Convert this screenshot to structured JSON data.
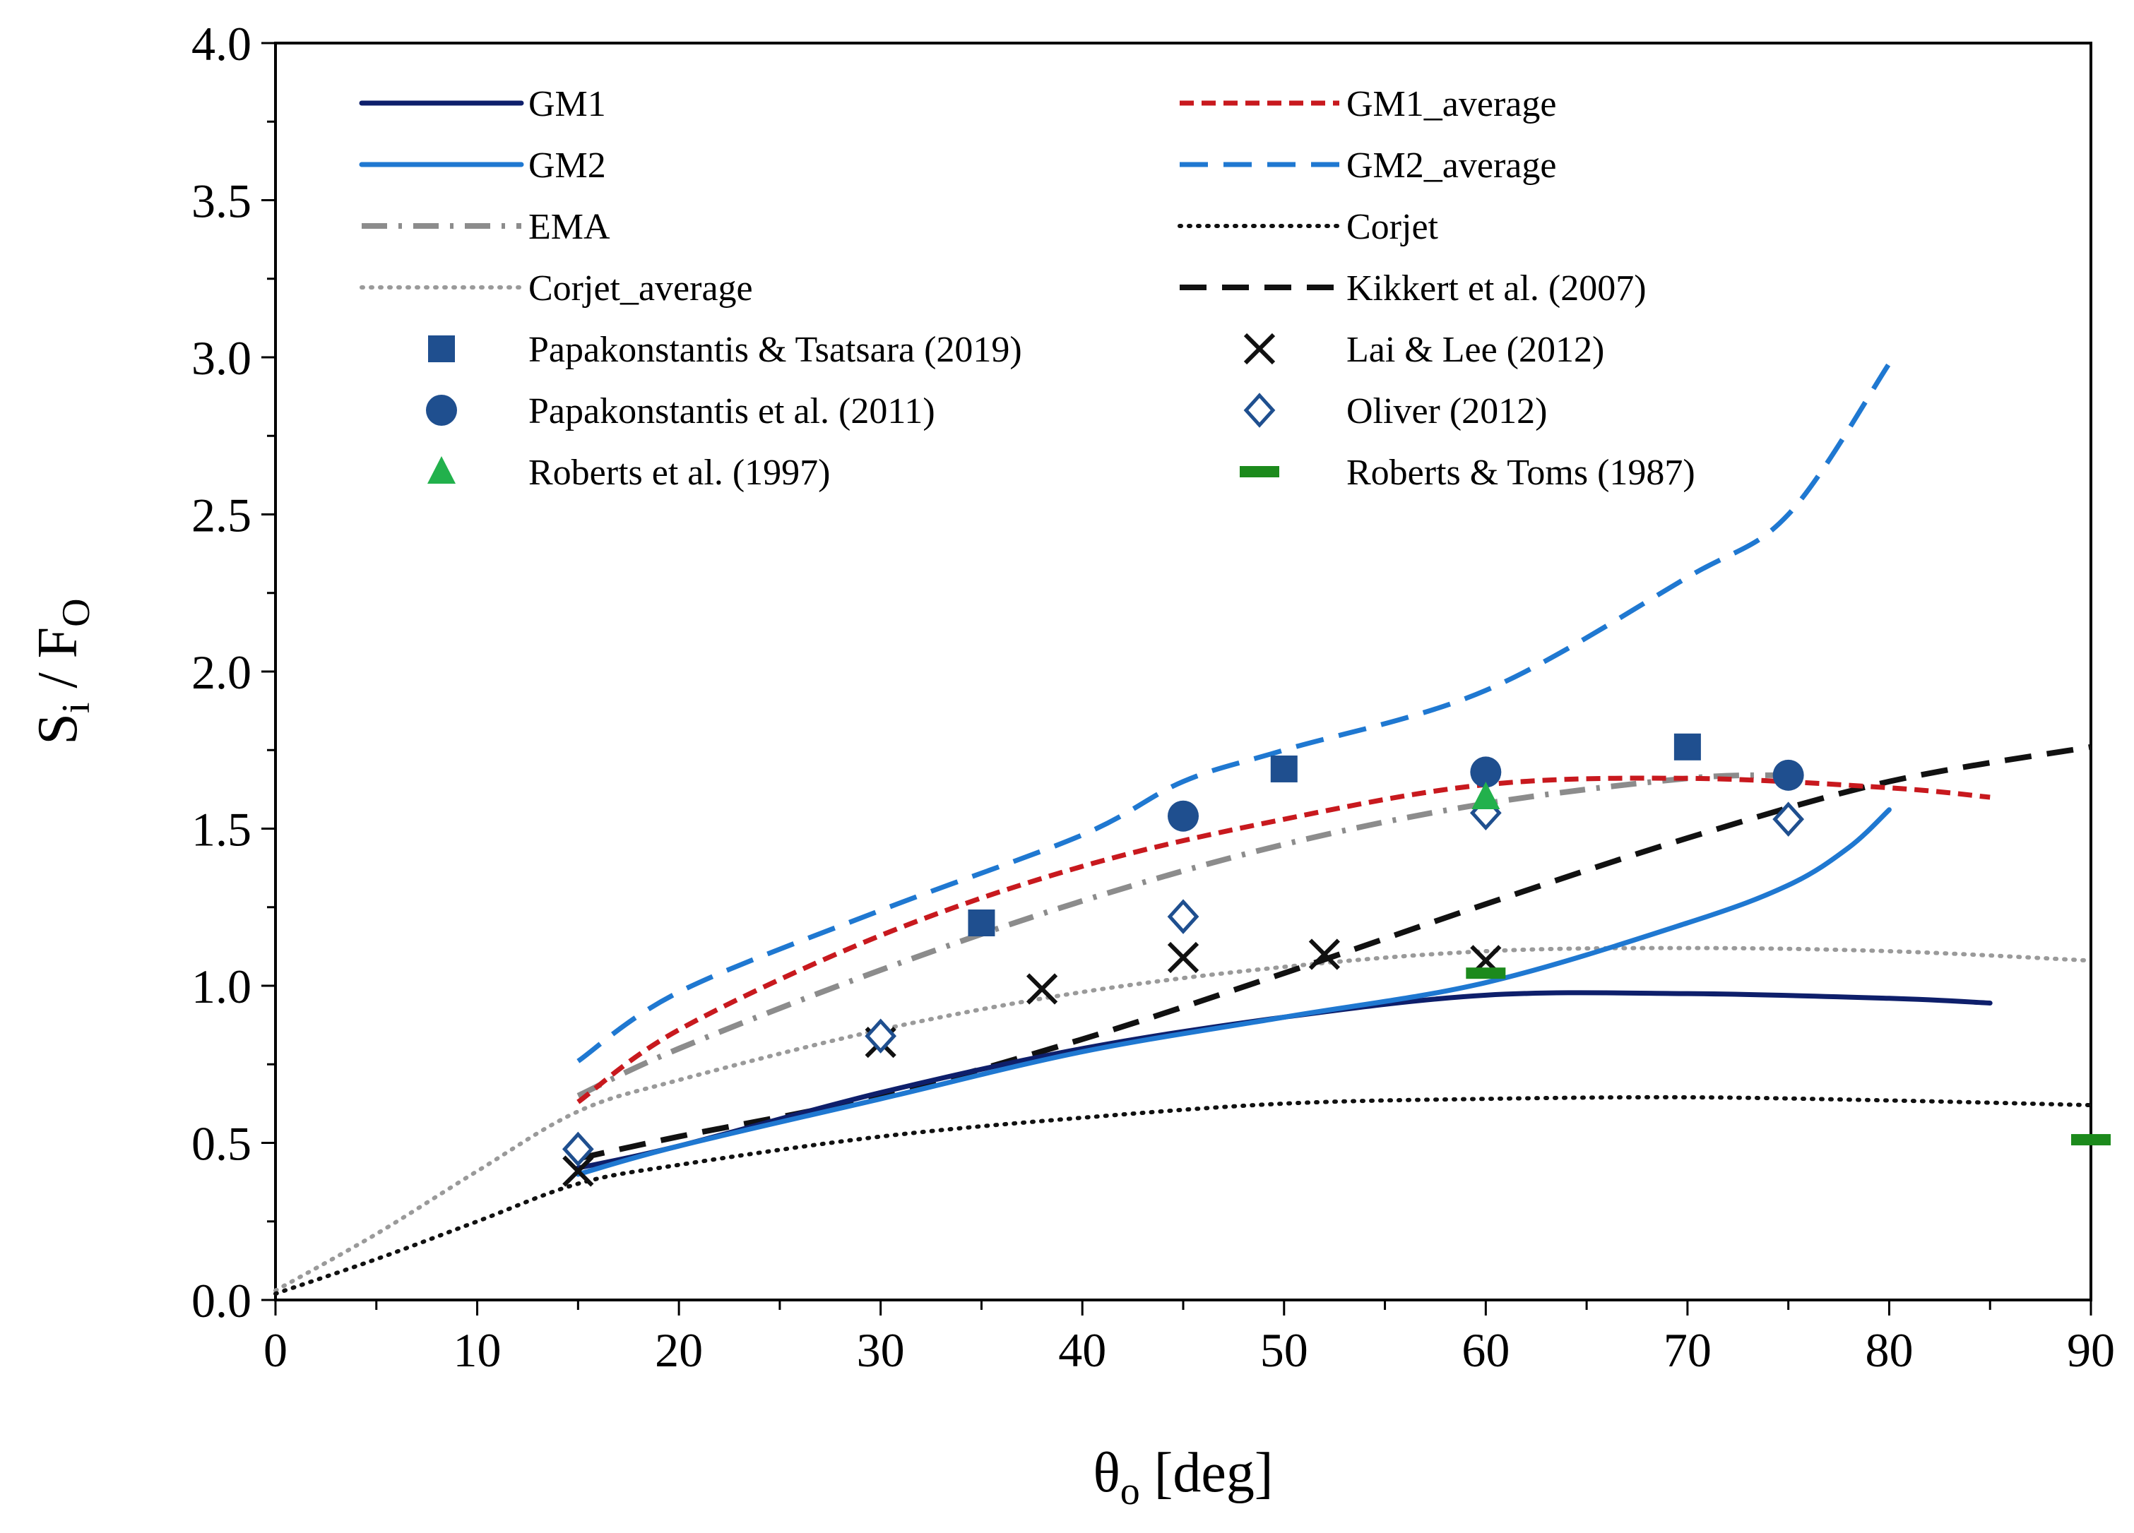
{
  "chart_data": {
    "type": "line",
    "title": "",
    "xlabel": {
      "main": "θ",
      "sub": "o",
      "rest": " [deg]"
    },
    "ylabel": {
      "s": "S",
      "s_sub": "i",
      "slash": " / ",
      "f": "F",
      "f_sub": "O"
    },
    "xlim": [
      0,
      90
    ],
    "ylim": [
      0,
      4
    ],
    "x_ticks": [
      "0",
      "10",
      "20",
      "30",
      "40",
      "50",
      "60",
      "70",
      "80",
      "90"
    ],
    "y_ticks": [
      "0.0",
      "0.5",
      "1.0",
      "1.5",
      "2.0",
      "2.5",
      "3.0",
      "3.5",
      "4.0"
    ],
    "grid": false,
    "legend_position": "top, two columns",
    "colors": {
      "navy": "#0e1f6b",
      "blue": "#1f78d1",
      "red": "#c8191e",
      "gray": "#8c8c8c",
      "lightgray": "#9a9a9a",
      "black": "#111111",
      "marker_blue": "#1f4f8f",
      "green_tri": "#22b14c",
      "green_bar": "#1c8a1c"
    },
    "series": [
      {
        "name": "GM1",
        "style": "solid",
        "color": "navy",
        "x": [
          15,
          20,
          30,
          40,
          50,
          60,
          70,
          80,
          85
        ],
        "y": [
          0.42,
          0.49,
          0.66,
          0.8,
          0.9,
          0.97,
          0.975,
          0.96,
          0.945
        ]
      },
      {
        "name": "GM1_average",
        "style": "short-dash",
        "color": "red",
        "x": [
          15,
          20,
          30,
          40,
          50,
          60,
          70,
          80,
          85
        ],
        "y": [
          0.63,
          0.86,
          1.16,
          1.38,
          1.53,
          1.64,
          1.66,
          1.63,
          1.6
        ]
      },
      {
        "name": "GM2",
        "style": "solid",
        "color": "blue",
        "x": [
          15,
          20,
          30,
          40,
          50,
          60,
          70,
          75,
          78,
          80
        ],
        "y": [
          0.4,
          0.49,
          0.64,
          0.79,
          0.9,
          1.01,
          1.2,
          1.32,
          1.44,
          1.56
        ]
      },
      {
        "name": "GM2_average",
        "style": "long-dash",
        "color": "blue",
        "x": [
          15,
          20,
          30,
          40,
          45,
          50,
          60,
          70,
          75,
          80
        ],
        "y": [
          0.76,
          0.98,
          1.24,
          1.48,
          1.65,
          1.75,
          1.94,
          2.3,
          2.5,
          2.98
        ]
      },
      {
        "name": "EMA",
        "style": "dash-dot",
        "color": "gray",
        "x": [
          15,
          20,
          30,
          40,
          50,
          60,
          70,
          75
        ],
        "y": [
          0.65,
          0.8,
          1.05,
          1.27,
          1.45,
          1.58,
          1.66,
          1.67
        ]
      },
      {
        "name": "Corjet",
        "style": "dotted",
        "color": "black",
        "x": [
          0,
          5,
          10,
          15,
          20,
          30,
          40,
          50,
          60,
          70,
          80,
          90
        ],
        "y": [
          0.02,
          0.13,
          0.25,
          0.37,
          0.43,
          0.52,
          0.58,
          0.625,
          0.64,
          0.645,
          0.635,
          0.62
        ]
      },
      {
        "name": "Corjet_average",
        "style": "dotted",
        "color": "lightgray",
        "x": [
          0,
          5,
          10,
          15,
          20,
          30,
          40,
          50,
          60,
          70,
          80,
          90
        ],
        "y": [
          0.03,
          0.21,
          0.41,
          0.6,
          0.7,
          0.86,
          0.98,
          1.06,
          1.11,
          1.12,
          1.11,
          1.08
        ]
      },
      {
        "name": "Kikkert et al. (2007)",
        "style": "long-dash-heavy",
        "color": "black",
        "x": [
          15,
          20,
          30,
          40,
          50,
          60,
          70,
          80,
          90
        ],
        "y": [
          0.45,
          0.52,
          0.65,
          0.83,
          1.04,
          1.26,
          1.47,
          1.65,
          1.76
        ]
      }
    ],
    "markers": [
      {
        "name": "Papakonstantis & Tsatsara (2019)",
        "shape": "square",
        "color": "marker_blue",
        "x": [
          35,
          50,
          70
        ],
        "y": [
          1.2,
          1.69,
          1.76
        ]
      },
      {
        "name": "Lai & Lee (2012)",
        "shape": "x",
        "color": "black",
        "x": [
          15,
          30,
          38,
          45,
          52,
          60
        ],
        "y": [
          0.41,
          0.82,
          0.99,
          1.09,
          1.1,
          1.08
        ]
      },
      {
        "name": "Papakonstantis et al. (2011)",
        "shape": "circle",
        "color": "marker_blue",
        "x": [
          45,
          60,
          75
        ],
        "y": [
          1.54,
          1.68,
          1.67
        ]
      },
      {
        "name": "Oliver (2012)",
        "shape": "diamond",
        "color": "marker_blue",
        "x": [
          15,
          30,
          45,
          60,
          75
        ],
        "y": [
          0.48,
          0.84,
          1.22,
          1.55,
          1.53
        ]
      },
      {
        "name": "Roberts et al. (1997)",
        "shape": "triangle",
        "color": "green_tri",
        "x": [
          60
        ],
        "y": [
          1.6
        ]
      },
      {
        "name": "Roberts & Toms (1987)",
        "shape": "bar",
        "color": "green_bar",
        "x": [
          60,
          90
        ],
        "y": [
          1.04,
          0.51
        ]
      }
    ],
    "legend": [
      {
        "label": "GM1",
        "ref": "GM1"
      },
      {
        "label": "GM1_average",
        "ref": "GM1_average"
      },
      {
        "label": "GM2",
        "ref": "GM2"
      },
      {
        "label": "GM2_average",
        "ref": "GM2_average"
      },
      {
        "label": "EMA",
        "ref": "EMA"
      },
      {
        "label": "Corjet",
        "ref": "Corjet"
      },
      {
        "label": "Corjet_average",
        "ref": "Corjet_average"
      },
      {
        "label": "Kikkert et al. (2007)",
        "ref": "Kikkert et al. (2007)"
      },
      {
        "label": "Papakonstantis & Tsatsara (2019)",
        "ref": "Papakonstantis & Tsatsara (2019)"
      },
      {
        "label": "Lai & Lee (2012)",
        "ref": "Lai & Lee (2012)"
      },
      {
        "label": "Papakonstantis et al. (2011)",
        "ref": "Papakonstantis et al. (2011)"
      },
      {
        "label": "Oliver (2012)",
        "ref": "Oliver (2012)"
      },
      {
        "label": "Roberts et al. (1997)",
        "ref": "Roberts et al. (1997)"
      },
      {
        "label": "Roberts & Toms (1987)",
        "ref": "Roberts & Toms (1987)"
      }
    ]
  }
}
